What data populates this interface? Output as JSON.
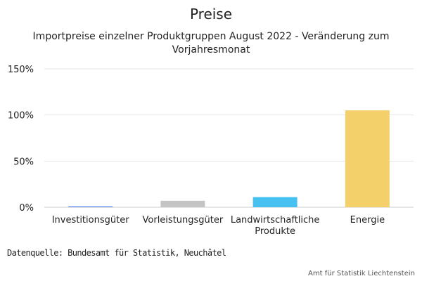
{
  "title": "Preise",
  "subtitle": "Importpreise einzelner Produktgruppen August 2022 - Veränderung zum Vorjahresmonat",
  "source": "Datenquelle: Bundesamt für Statistik, Neuchâtel",
  "credit": "Amt für Statistik Liechtenstein",
  "chart_data": {
    "type": "bar",
    "categories": [
      "Investitionsgüter",
      "Vorleistungsgüter",
      "Landwirtschaftliche Produkte",
      "Energie"
    ],
    "category_lines": [
      [
        "Investitionsgüter"
      ],
      [
        "Vorleistungsgüter"
      ],
      [
        "Landwirtschaftliche",
        "Produkte"
      ],
      [
        "Energie"
      ]
    ],
    "values": [
      1,
      7,
      11,
      105
    ],
    "colors": [
      "#5b8def",
      "#c4c4c4",
      "#47c1ef",
      "#f4d06b"
    ],
    "ylim": [
      0,
      150
    ],
    "yticks": [
      0,
      50,
      100,
      150
    ],
    "ytick_labels": [
      "0%",
      "50%",
      "100%",
      "150%"
    ],
    "grid": true
  }
}
